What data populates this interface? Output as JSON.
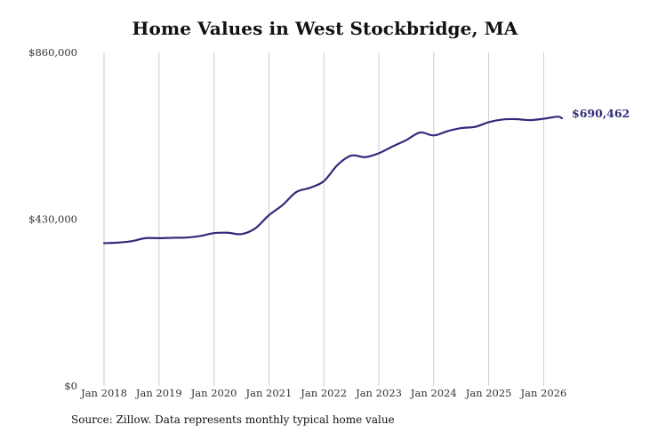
{
  "chart_data": {
    "type": "line",
    "title": "Home Values in West Stockbridge, MA",
    "xlabel": "",
    "ylabel": "",
    "x_tick_labels": [
      "Jan 2018",
      "Jan 2019",
      "Jan 2020",
      "Jan 2021",
      "Jan 2022",
      "Jan 2023",
      "Jan 2024",
      "Jan 2025",
      "Jan 2026"
    ],
    "y_tick_labels": [
      "$860,000",
      "$430,000",
      "$0"
    ],
    "ylim": [
      0,
      860000
    ],
    "xlim": [
      "2018-01",
      "2026-05"
    ],
    "grid": {
      "vertical": true,
      "horizontal": false
    },
    "line_color": "#2f2a7a",
    "grid_color": "#cccccc",
    "end_label": "$690,462",
    "series": [
      {
        "x": [
          "2018-01",
          "2018-04",
          "2018-07",
          "2018-10",
          "2019-01",
          "2019-04",
          "2019-07",
          "2019-10",
          "2020-01",
          "2020-04",
          "2020-07",
          "2020-10",
          "2021-01",
          "2021-04",
          "2021-07",
          "2021-10",
          "2022-01",
          "2022-04",
          "2022-07",
          "2022-10",
          "2023-01",
          "2023-04",
          "2023-07",
          "2023-10",
          "2024-01",
          "2024-04",
          "2024-07",
          "2024-10",
          "2025-01",
          "2025-04",
          "2025-07",
          "2025-10",
          "2026-01",
          "2026-04",
          "2026-05"
        ],
        "values": [
          368000,
          369500,
          373000,
          381000,
          381000,
          382000,
          382500,
          386500,
          394000,
          395000,
          391500,
          406000,
          440000,
          466500,
          500000,
          511000,
          528000,
          570000,
          594000,
          590000,
          600000,
          617500,
          634000,
          653500,
          646000,
          657000,
          665000,
          668000,
          680000,
          687000,
          688000,
          685500,
          689000,
          694500,
          690462
        ]
      }
    ]
  },
  "footer": {
    "source": "Source: Zillow. Data represents monthly typical home value"
  }
}
